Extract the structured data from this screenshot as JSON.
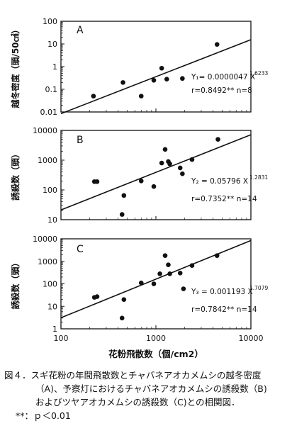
{
  "chart_data": [
    {
      "type": "scatter",
      "panel_label": "A",
      "ylabel": "越冬密度（頭/50㎠）",
      "xscale": "log",
      "yscale": "log",
      "xlim": [
        100,
        10000
      ],
      "ylim": [
        0.01,
        100
      ],
      "xticks": [
        "100",
        "1000",
        "10000"
      ],
      "yticks": [
        "0.01",
        "0.1",
        "1",
        "10",
        "100"
      ],
      "points": [
        {
          "x": 220,
          "y": 0.05
        },
        {
          "x": 450,
          "y": 0.2
        },
        {
          "x": 700,
          "y": 0.05
        },
        {
          "x": 950,
          "y": 0.25
        },
        {
          "x": 1150,
          "y": 0.85
        },
        {
          "x": 1300,
          "y": 0.28
        },
        {
          "x": 1900,
          "y": 0.3
        },
        {
          "x": 4400,
          "y": 9.5
        }
      ],
      "fit_line": {
        "x": [
          100,
          10000
        ],
        "y": [
          0.0084,
          15.4
        ]
      },
      "equation": "Y₁= 0.0000047 X",
      "exponent": "1.6233",
      "stats": "r=0.8492** n=8"
    },
    {
      "type": "scatter",
      "panel_label": "B",
      "ylabel": "誘殺数（頭）",
      "xscale": "log",
      "yscale": "log",
      "xlim": [
        100,
        10000
      ],
      "ylim": [
        10,
        10000
      ],
      "xticks": [
        "100",
        "1000",
        "10000"
      ],
      "yticks": [
        "10",
        "100",
        "1000",
        "10000"
      ],
      "points": [
        {
          "x": 225,
          "y": 190
        },
        {
          "x": 240,
          "y": 190
        },
        {
          "x": 440,
          "y": 15
        },
        {
          "x": 460,
          "y": 65
        },
        {
          "x": 700,
          "y": 200
        },
        {
          "x": 950,
          "y": 130
        },
        {
          "x": 1150,
          "y": 800
        },
        {
          "x": 1250,
          "y": 2300
        },
        {
          "x": 1350,
          "y": 900
        },
        {
          "x": 1400,
          "y": 750
        },
        {
          "x": 1800,
          "y": 550
        },
        {
          "x": 1900,
          "y": 350
        },
        {
          "x": 2400,
          "y": 1050
        },
        {
          "x": 4500,
          "y": 5000
        }
      ],
      "fit_line": {
        "x": [
          100,
          10000
        ],
        "y": [
          21.3,
          7140
        ]
      },
      "equation": "Y₂ = 0.05796 X",
      "exponent": "1.2831",
      "stats": "r=0.7352** n=14"
    },
    {
      "type": "scatter",
      "panel_label": "C",
      "ylabel": "誘殺数（頭）",
      "xlabel": "花粉飛散数（個/cm2）",
      "xscale": "log",
      "yscale": "log",
      "xlim": [
        100,
        10000
      ],
      "ylim": [
        1,
        10000
      ],
      "xticks": [
        "100",
        "1000",
        "10000"
      ],
      "yticks": [
        "1",
        "10",
        "100",
        "1000",
        "10000"
      ],
      "points": [
        {
          "x": 225,
          "y": 25
        },
        {
          "x": 240,
          "y": 27
        },
        {
          "x": 440,
          "y": 3
        },
        {
          "x": 460,
          "y": 20
        },
        {
          "x": 700,
          "y": 110
        },
        {
          "x": 950,
          "y": 100
        },
        {
          "x": 1100,
          "y": 280
        },
        {
          "x": 1250,
          "y": 1800
        },
        {
          "x": 1350,
          "y": 700
        },
        {
          "x": 1400,
          "y": 280
        },
        {
          "x": 1800,
          "y": 300
        },
        {
          "x": 1950,
          "y": 60
        },
        {
          "x": 2400,
          "y": 650
        },
        {
          "x": 4400,
          "y": 1800
        }
      ],
      "fit_line": {
        "x": [
          100,
          10000
        ],
        "y": [
          3.1,
          8450
        ]
      },
      "equation": "Y₃ = 0.001193 X",
      "exponent": "1.7079",
      "stats": "r=0.7842** n=14"
    }
  ],
  "caption": {
    "line1": "図４．スギ花粉の年間飛散数とチャバネアオカメムシの越冬密度",
    "line2": "（A)、予察灯におけるチャバネアオカメムシの誘殺数（B)",
    "line3": "およびツヤアオカメムシの誘殺数（C)との相関図．",
    "line4": "**：ｐ＜0.01"
  }
}
